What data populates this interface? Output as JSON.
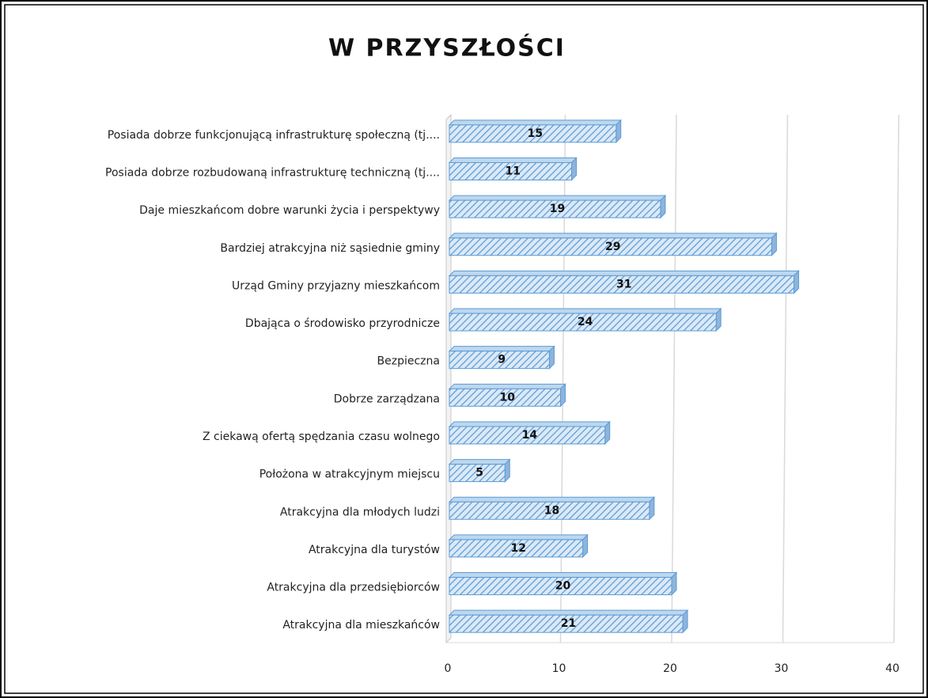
{
  "chart_data": {
    "type": "bar",
    "orientation": "horizontal",
    "title": "W PRZYSZŁOŚCI",
    "categories": [
      "Posiada dobrze funkcjonującą infrastrukturę społeczną (tj....",
      "Posiada dobrze rozbudowaną infrastrukturę techniczną (tj....",
      "Daje mieszkańcom dobre warunki życia i perspektywy",
      "Bardziej atrakcyjna niż sąsiednie gminy",
      "Urząd Gminy przyjazny mieszkańcom",
      "Dbająca o środowisko przyrodnicze",
      "Bezpieczna",
      "Dobrze zarządzana",
      "Z ciekawą ofertą spędzania czasu wolnego",
      "Położona w atrakcyjnym miejscu",
      "Atrakcyjna dla młodych ludzi",
      "Atrakcyjna dla turystów",
      "Atrakcyjna dla przedsiębiorców",
      "Atrakcyjna dla mieszkańców"
    ],
    "values": [
      15,
      11,
      19,
      29,
      31,
      24,
      9,
      10,
      14,
      5,
      18,
      12,
      20,
      21
    ],
    "color": "#5b9bd5",
    "xlim": [
      0,
      40
    ],
    "xticks": [
      0,
      10,
      20,
      30,
      40
    ],
    "grid": true
  }
}
